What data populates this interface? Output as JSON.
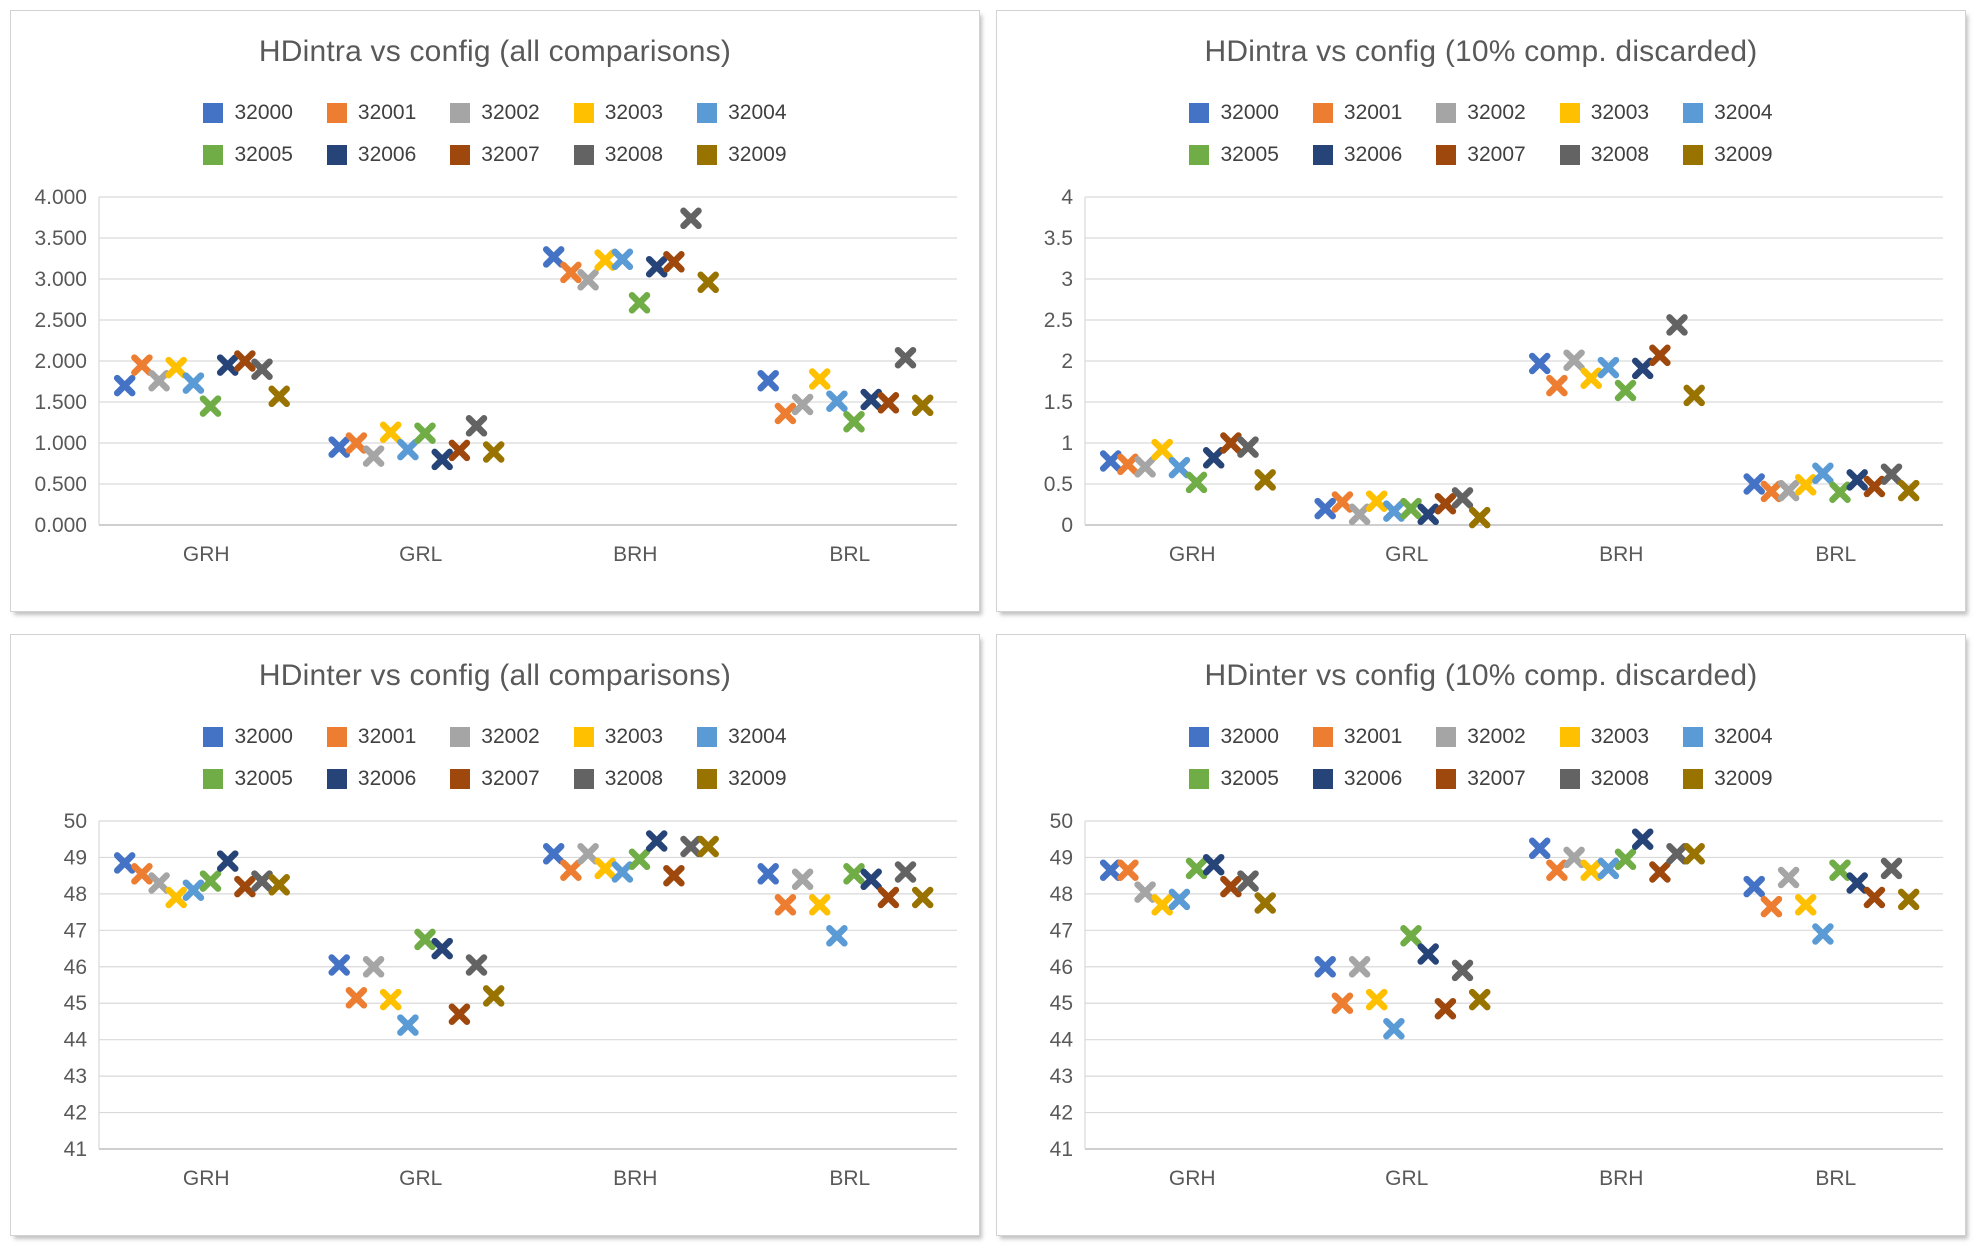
{
  "categories": [
    "GRH",
    "GRL",
    "BRH",
    "BRL"
  ],
  "palette": {
    "grid_color": "#d9d9d9",
    "axis_color": "#bfbfbf",
    "title_color": "#595959",
    "tick_color": "#595959"
  },
  "chart_data": [
    {
      "type": "scatter",
      "title": "HDintra vs config (all comparisons)",
      "categories": [
        "GRH",
        "GRL",
        "BRH",
        "BRL"
      ],
      "ylim": [
        0,
        4
      ],
      "yticks": [
        "4.000",
        "3.500",
        "3.000",
        "2.500",
        "2.000",
        "1.500",
        "1.000",
        "0.500",
        "0.000"
      ],
      "grid": true,
      "legend_position": "top",
      "marker": "x",
      "series": [
        {
          "name": "32000",
          "color": "#4472C4",
          "values": [
            1.7,
            0.95,
            3.27,
            1.76
          ]
        },
        {
          "name": "32001",
          "color": "#ED7D31",
          "values": [
            1.95,
            1.0,
            3.08,
            1.36
          ]
        },
        {
          "name": "32002",
          "color": "#A5A5A5",
          "values": [
            1.76,
            0.84,
            2.99,
            1.47
          ]
        },
        {
          "name": "32003",
          "color": "#FFC000",
          "values": [
            1.92,
            1.13,
            3.23,
            1.78
          ]
        },
        {
          "name": "32004",
          "color": "#5B9BD5",
          "values": [
            1.73,
            0.92,
            3.24,
            1.51
          ]
        },
        {
          "name": "32005",
          "color": "#70AD47",
          "values": [
            1.45,
            1.12,
            2.71,
            1.26
          ]
        },
        {
          "name": "32006",
          "color": "#264478",
          "values": [
            1.95,
            0.8,
            3.15,
            1.53
          ]
        },
        {
          "name": "32007",
          "color": "#9E480E",
          "values": [
            2.0,
            0.91,
            3.21,
            1.49
          ]
        },
        {
          "name": "32008",
          "color": "#636363",
          "values": [
            1.9,
            1.21,
            3.74,
            2.04
          ]
        },
        {
          "name": "32009",
          "color": "#997300",
          "values": [
            1.57,
            0.89,
            2.96,
            1.46
          ]
        }
      ]
    },
    {
      "type": "scatter",
      "title": "HDintra vs config (10% comp. discarded)",
      "categories": [
        "GRH",
        "GRL",
        "BRH",
        "BRL"
      ],
      "ylim": [
        0,
        4
      ],
      "yticks": [
        "4",
        "3.5",
        "3",
        "2.5",
        "2",
        "1.5",
        "1",
        "0.5",
        "0"
      ],
      "grid": true,
      "legend_position": "top",
      "marker": "x",
      "series": [
        {
          "name": "32000",
          "color": "#4472C4",
          "values": [
            0.78,
            0.2,
            1.97,
            0.5
          ]
        },
        {
          "name": "32001",
          "color": "#ED7D31",
          "values": [
            0.74,
            0.28,
            1.7,
            0.41
          ]
        },
        {
          "name": "32002",
          "color": "#A5A5A5",
          "values": [
            0.71,
            0.13,
            2.01,
            0.42
          ]
        },
        {
          "name": "32003",
          "color": "#FFC000",
          "values": [
            0.92,
            0.29,
            1.79,
            0.49
          ]
        },
        {
          "name": "32004",
          "color": "#5B9BD5",
          "values": [
            0.7,
            0.17,
            1.92,
            0.63
          ]
        },
        {
          "name": "32005",
          "color": "#70AD47",
          "values": [
            0.52,
            0.2,
            1.64,
            0.4
          ]
        },
        {
          "name": "32006",
          "color": "#264478",
          "values": [
            0.82,
            0.13,
            1.91,
            0.55
          ]
        },
        {
          "name": "32007",
          "color": "#9E480E",
          "values": [
            1.0,
            0.26,
            2.07,
            0.47
          ]
        },
        {
          "name": "32008",
          "color": "#636363",
          "values": [
            0.95,
            0.33,
            2.44,
            0.62
          ]
        },
        {
          "name": "32009",
          "color": "#997300",
          "values": [
            0.55,
            0.09,
            1.58,
            0.42
          ]
        }
      ]
    },
    {
      "type": "scatter",
      "title": "HDinter vs config (all comparisons)",
      "categories": [
        "GRH",
        "GRL",
        "BRH",
        "BRL"
      ],
      "ylim": [
        41,
        50
      ],
      "yticks": [
        "50",
        "49",
        "48",
        "47",
        "46",
        "45",
        "44",
        "43",
        "42",
        "41"
      ],
      "grid": true,
      "legend_position": "top",
      "marker": "x",
      "series": [
        {
          "name": "32000",
          "color": "#4472C4",
          "values": [
            48.85,
            46.05,
            49.1,
            48.55
          ]
        },
        {
          "name": "32001",
          "color": "#ED7D31",
          "values": [
            48.55,
            45.15,
            48.65,
            47.7
          ]
        },
        {
          "name": "32002",
          "color": "#A5A5A5",
          "values": [
            48.3,
            46.0,
            49.1,
            48.4
          ]
        },
        {
          "name": "32003",
          "color": "#FFC000",
          "values": [
            47.9,
            45.1,
            48.7,
            47.7
          ]
        },
        {
          "name": "32004",
          "color": "#5B9BD5",
          "values": [
            48.1,
            44.4,
            48.6,
            46.85
          ]
        },
        {
          "name": "32005",
          "color": "#70AD47",
          "values": [
            48.35,
            46.75,
            48.95,
            48.55
          ]
        },
        {
          "name": "32006",
          "color": "#264478",
          "values": [
            48.9,
            46.5,
            49.45,
            48.4
          ]
        },
        {
          "name": "32007",
          "color": "#9E480E",
          "values": [
            48.2,
            44.7,
            48.5,
            47.9
          ]
        },
        {
          "name": "32008",
          "color": "#636363",
          "values": [
            48.35,
            46.05,
            49.3,
            48.6
          ]
        },
        {
          "name": "32009",
          "color": "#997300",
          "values": [
            48.25,
            45.2,
            49.3,
            47.9
          ]
        }
      ]
    },
    {
      "type": "scatter",
      "title": "HDinter vs config (10% comp. discarded)",
      "categories": [
        "GRH",
        "GRL",
        "BRH",
        "BRL"
      ],
      "ylim": [
        41,
        50
      ],
      "yticks": [
        "50",
        "49",
        "48",
        "47",
        "46",
        "45",
        "44",
        "43",
        "42",
        "41"
      ],
      "grid": true,
      "legend_position": "top",
      "marker": "x",
      "series": [
        {
          "name": "32000",
          "color": "#4472C4",
          "values": [
            48.65,
            46.0,
            49.25,
            48.2
          ]
        },
        {
          "name": "32001",
          "color": "#ED7D31",
          "values": [
            48.65,
            45.0,
            48.65,
            47.65
          ]
        },
        {
          "name": "32002",
          "color": "#A5A5A5",
          "values": [
            48.05,
            46.0,
            49.0,
            48.45
          ]
        },
        {
          "name": "32003",
          "color": "#FFC000",
          "values": [
            47.7,
            45.1,
            48.65,
            47.7
          ]
        },
        {
          "name": "32004",
          "color": "#5B9BD5",
          "values": [
            47.85,
            44.3,
            48.7,
            46.9
          ]
        },
        {
          "name": "32005",
          "color": "#70AD47",
          "values": [
            48.7,
            46.85,
            48.95,
            48.65
          ]
        },
        {
          "name": "32006",
          "color": "#264478",
          "values": [
            48.8,
            46.35,
            49.5,
            48.3
          ]
        },
        {
          "name": "32007",
          "color": "#9E480E",
          "values": [
            48.2,
            44.85,
            48.6,
            47.9
          ]
        },
        {
          "name": "32008",
          "color": "#636363",
          "values": [
            48.35,
            45.9,
            49.1,
            48.7
          ]
        },
        {
          "name": "32009",
          "color": "#997300",
          "values": [
            47.75,
            45.1,
            49.1,
            47.85
          ]
        }
      ]
    }
  ]
}
